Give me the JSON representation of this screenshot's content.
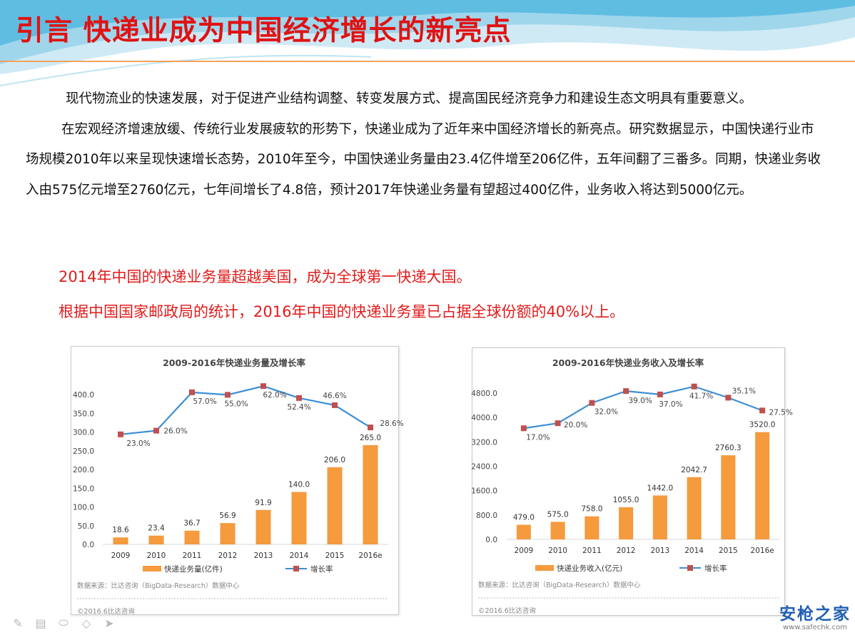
{
  "slide": {
    "title": "引言  快递业成为中国经济增长的新亮点",
    "paragraphs": [
      "现代物流业的快速发展，对于促进产业结构调整、转变发展方式、提高国民经济竞争力和建设生态文明具有重要意义。",
      "在宏观经济增速放缓、传统行业发展疲软的形势下，快递业成为了近年来中国经济增长的新亮点。研究数据显示，中国快递行业市场规模2010年以来呈现快速增长态势，2010年至今，中国快递业务量由23.4亿件增至206亿件，五年间翻了三番多。同期，快递业务收入由575亿元增至2760亿元，七年间增长了4.8倍，预计2017年快递业务量有望超过400亿件，业务收入将达到5000亿元。"
    ],
    "highlights": [
      "2014年中国的快递业务量超越美国，成为全球第一快递大国。",
      "根据中国国家邮政局的统计，2016年中国的快递业务量已占据全球份额的40%以上。"
    ]
  },
  "colors": {
    "title": "#e01212",
    "highlight": "#e21b1b",
    "bar": "#f59a3d",
    "line": "#3b8fd6",
    "marker": "#c0504d",
    "watermark": "#1e5fb3"
  },
  "toolbar": {
    "icons": [
      "pen-icon",
      "slides-icon",
      "highlighter-icon",
      "eraser-icon",
      "pointer-icon"
    ]
  },
  "watermark": {
    "main": "安枪之家",
    "sub": "www.safechk.com"
  },
  "chart_data": [
    {
      "type": "bar",
      "title": "2009-2016年快递业务量及增长率",
      "categories": [
        "2009",
        "2010",
        "2011",
        "2012",
        "2013",
        "2014",
        "2015",
        "2016e"
      ],
      "series": [
        {
          "name": "快递业务量(亿件)",
          "type": "bar",
          "values": [
            18.6,
            23.4,
            36.7,
            56.9,
            91.9,
            140.0,
            206.0,
            265.0
          ],
          "labels": [
            "18.6",
            "23.4",
            "36.7",
            "56.9",
            "91.9",
            "140.0",
            "206.0",
            "265.0"
          ]
        },
        {
          "name": "增长率",
          "type": "line",
          "values": [
            23.0,
            26.0,
            57.0,
            55.0,
            62.0,
            52.4,
            46.6,
            28.6
          ],
          "labels": [
            "23.0%",
            "26.0%",
            "57.0%",
            "55.0%",
            "62.0%",
            "52.4%",
            "46.6%",
            "28.6%"
          ]
        }
      ],
      "yticks": [
        "0.0",
        "50.0",
        "100.0",
        "150.0",
        "200.0",
        "250.0",
        "300.0",
        "350.0",
        "400.0"
      ],
      "ylim": [
        0,
        400
      ],
      "source": "数据来源：比达咨询（BigData-Research）数据中心",
      "copyright": "©2016.6比达咨询",
      "grid": false,
      "legend": "bottom"
    },
    {
      "type": "bar",
      "title": "2009-2016年快递业务收入及增长率",
      "categories": [
        "2009",
        "2010",
        "2011",
        "2012",
        "2013",
        "2014",
        "2015",
        "2016e"
      ],
      "series": [
        {
          "name": "快递业务收入(亿元)",
          "type": "bar",
          "values": [
            479.0,
            575.0,
            758.0,
            1055.0,
            1442.0,
            2042.7,
            2760.3,
            3520.0
          ],
          "labels": [
            "479.0",
            "575.0",
            "758.0",
            "1055.0",
            "1442.0",
            "2042.7",
            "2760.3",
            "3520.0"
          ]
        },
        {
          "name": "增长率",
          "type": "line",
          "values": [
            17.0,
            20.0,
            32.0,
            39.0,
            37.0,
            41.7,
            35.1,
            27.5
          ],
          "labels": [
            "17.0%",
            "20.0%",
            "32.0%",
            "39.0%",
            "37.0%",
            "41.7%",
            "35.1%",
            "27.5%"
          ]
        }
      ],
      "yticks": [
        "0.0",
        "800.0",
        "1600.0",
        "2400.0",
        "3200.0",
        "4000.0",
        "4800.0"
      ],
      "ylim": [
        0,
        4800
      ],
      "source": "数据来源：比达咨询（BigData-Research）数据中心",
      "copyright": "©2016.6比达咨询",
      "grid": false,
      "legend": "bottom"
    }
  ]
}
